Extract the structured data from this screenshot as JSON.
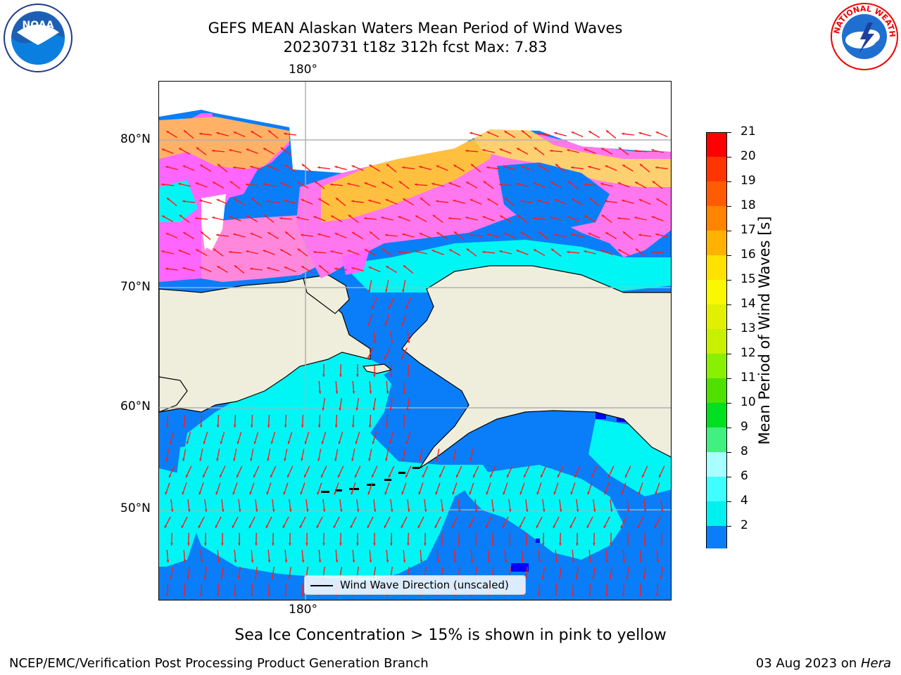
{
  "header": {
    "title_line1": "GEFS MEAN Alaskan Waters Mean Period of Wind Waves",
    "title_line2": "20230731 t18z 312h fcst   Max: 7.83"
  },
  "logos": {
    "left_text": "NOAA",
    "right_text": "NATIONAL WEATHER SERVICE"
  },
  "map": {
    "lon_label_top": "180°",
    "lon_label_bottom": "180°",
    "lat_labels": [
      "80°N",
      "70°N",
      "60°N",
      "50°N"
    ],
    "legend_label": "Wind Wave Direction (unscaled)",
    "colors": {
      "ocean_dark": "#0a7ef8",
      "ocean_cyan": "#00f5f5",
      "land": "#efeedd",
      "arrow": "#ff1a1a"
    }
  },
  "colorbar": {
    "label": "Mean Period of Wind Waves [s]",
    "ticks": [
      "21",
      "20",
      "19",
      "18",
      "17",
      "16",
      "15",
      "14",
      "13",
      "12",
      "11",
      "10",
      "9",
      "8",
      "6",
      "4",
      "2"
    ],
    "colors": [
      "#ff0000",
      "#ff3500",
      "#ff5c00",
      "#ff8400",
      "#ffb200",
      "#ffe100",
      "#f8f800",
      "#e0f000",
      "#c8f000",
      "#88f000",
      "#50e000",
      "#00e020",
      "#40f080",
      "#a8ffff",
      "#40ffff",
      "#00f0f0",
      "#0a7ef8"
    ],
    "extend_color": "#0000ff"
  },
  "notes": {
    "sea_ice": "Sea Ice Concentration > 15% is shown in pink to yellow"
  },
  "footer": {
    "left": "NCEP/EMC/Verification Post Processing Product Generation Branch",
    "right_prefix": "03 Aug 2023 on ",
    "right_machine": "Hera"
  }
}
